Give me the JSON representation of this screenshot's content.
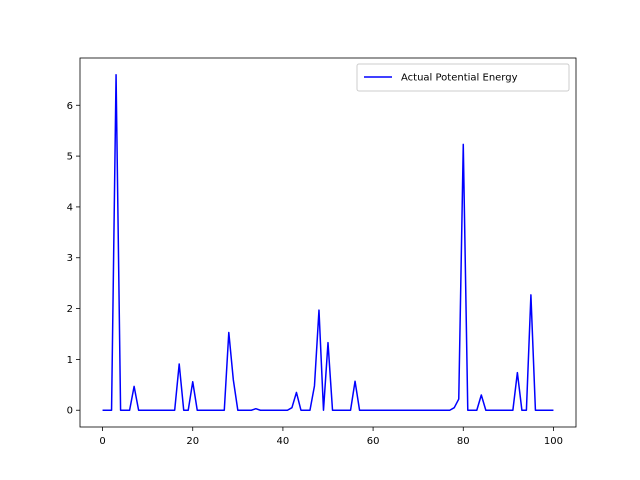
{
  "chart_data": {
    "type": "line",
    "title": "",
    "xlabel": "",
    "ylabel": "",
    "xlim": [
      -5,
      105
    ],
    "ylim": [
      -0.33,
      6.93
    ],
    "xticks": [
      0,
      20,
      40,
      60,
      80,
      100
    ],
    "yticks": [
      0,
      1,
      2,
      3,
      4,
      5,
      6
    ],
    "grid": false,
    "legend_position": "top-right",
    "series": [
      {
        "name": "Actual Potential Energy",
        "color": "#0000ff",
        "x": [
          0,
          1,
          2,
          3,
          4,
          5,
          6,
          7,
          8,
          9,
          10,
          11,
          12,
          13,
          14,
          15,
          16,
          17,
          18,
          19,
          20,
          21,
          22,
          23,
          24,
          25,
          26,
          27,
          28,
          29,
          30,
          31,
          32,
          33,
          34,
          35,
          36,
          37,
          38,
          39,
          40,
          41,
          42,
          43,
          44,
          45,
          46,
          47,
          48,
          49,
          50,
          51,
          52,
          53,
          54,
          55,
          56,
          57,
          58,
          59,
          60,
          61,
          62,
          63,
          64,
          65,
          66,
          67,
          68,
          69,
          70,
          71,
          72,
          73,
          74,
          75,
          76,
          77,
          78,
          79,
          80,
          81,
          82,
          83,
          84,
          85,
          86,
          87,
          88,
          89,
          90,
          91,
          92,
          93,
          94,
          95,
          96,
          97,
          98,
          99,
          100
        ],
        "y": [
          0,
          0,
          0,
          6.6,
          0,
          0,
          0,
          0.47,
          0,
          0,
          0,
          0,
          0,
          0,
          0,
          0,
          0,
          0.91,
          0,
          0,
          0.56,
          0,
          0,
          0,
          0,
          0,
          0,
          0,
          1.53,
          0.6,
          0,
          0,
          0,
          0,
          0.03,
          0,
          0,
          0,
          0,
          0,
          0,
          0,
          0.05,
          0.35,
          0,
          0,
          0,
          0.48,
          1.97,
          0,
          1.33,
          0,
          0,
          0,
          0,
          0,
          0.57,
          0,
          0,
          0,
          0,
          0,
          0,
          0,
          0,
          0,
          0,
          0,
          0,
          0,
          0,
          0,
          0,
          0,
          0,
          0,
          0,
          0,
          0.05,
          0.22,
          5.23,
          0,
          0,
          0,
          0.3,
          0,
          0,
          0,
          0,
          0,
          0,
          0,
          0.74,
          0,
          0,
          2.27,
          0,
          0,
          0,
          0,
          0
        ]
      }
    ]
  }
}
